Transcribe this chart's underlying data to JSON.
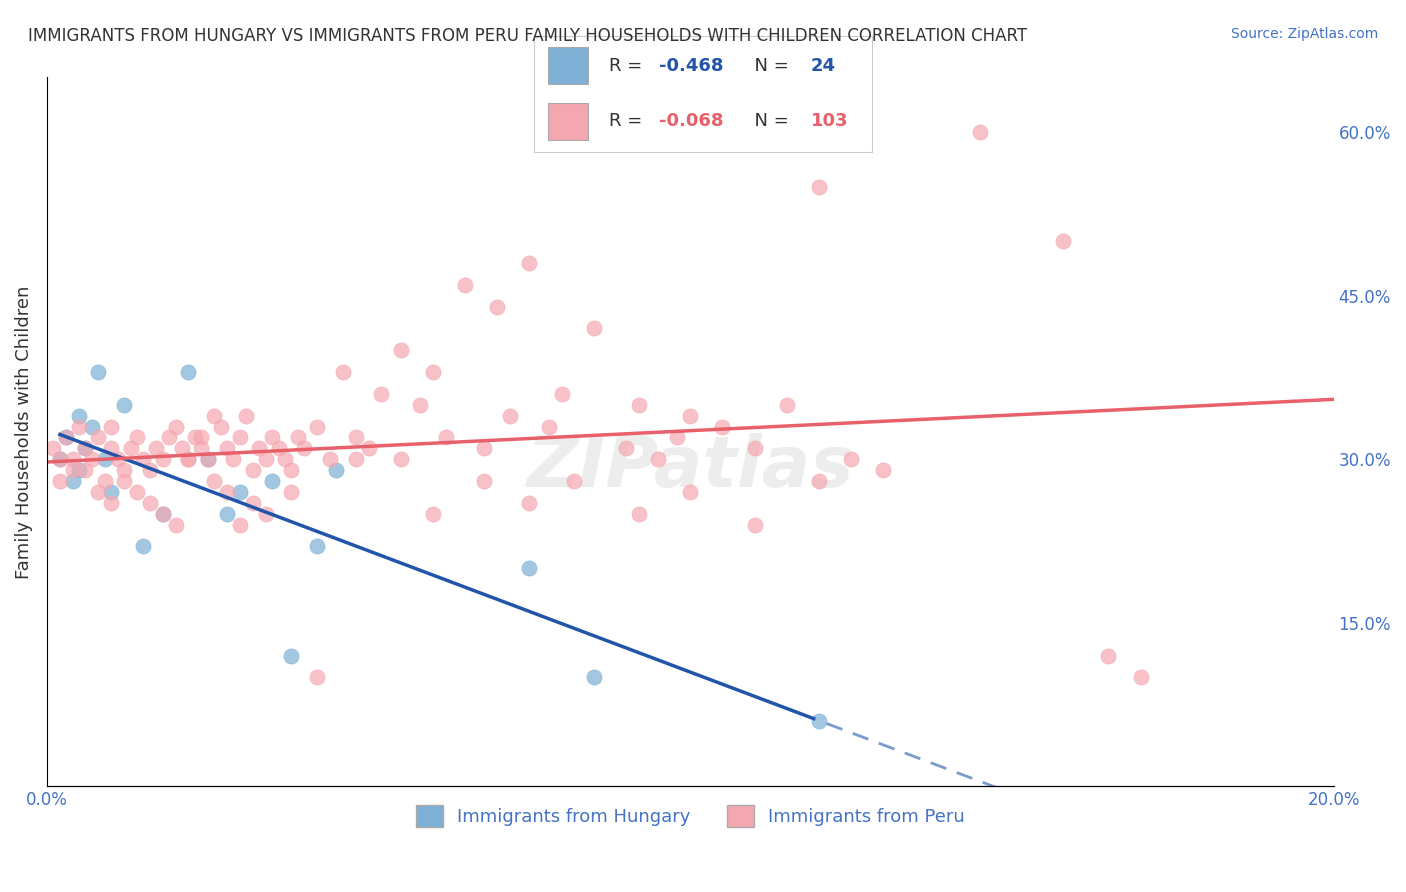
{
  "title": "IMMIGRANTS FROM HUNGARY VS IMMIGRANTS FROM PERU FAMILY HOUSEHOLDS WITH CHILDREN CORRELATION CHART",
  "source": "Source: ZipAtlas.com",
  "xlabel_bottom": "",
  "ylabel": "Family Households with Children",
  "xlim": [
    0.0,
    0.2
  ],
  "ylim": [
    0.0,
    0.65
  ],
  "x_ticks": [
    0.0,
    0.05,
    0.1,
    0.15,
    0.2
  ],
  "x_tick_labels": [
    "0.0%",
    "",
    "",
    "",
    "20.0%"
  ],
  "y_ticks_right": [
    0.15,
    0.3,
    0.45,
    0.6
  ],
  "y_tick_labels_right": [
    "15.0%",
    "30.0%",
    "45.0%",
    "60.0%"
  ],
  "legend_hungary": "R = -0.468  N =  24",
  "legend_peru": "R = -0.068  N = 103",
  "legend_label_hungary": "Immigrants from Hungary",
  "legend_label_peru": "Immigrants from Peru",
  "color_hungary": "#7EB0D5",
  "color_peru": "#F4A7B0",
  "color_hungary_line": "#2255AA",
  "color_peru_line": "#E8606A",
  "watermark": "ZIPatlas",
  "watermark_color": "#CCCCCC",
  "grid_color": "#CCCCCC",
  "background_color": "#FFFFFF",
  "hungary_x": [
    0.002,
    0.003,
    0.004,
    0.005,
    0.005,
    0.006,
    0.007,
    0.008,
    0.009,
    0.01,
    0.012,
    0.015,
    0.018,
    0.022,
    0.025,
    0.028,
    0.03,
    0.035,
    0.038,
    0.042,
    0.045,
    0.075,
    0.085,
    0.12
  ],
  "hungary_y": [
    0.3,
    0.32,
    0.28,
    0.34,
    0.29,
    0.31,
    0.33,
    0.38,
    0.3,
    0.27,
    0.35,
    0.22,
    0.25,
    0.38,
    0.3,
    0.25,
    0.27,
    0.28,
    0.12,
    0.22,
    0.29,
    0.2,
    0.1,
    0.06
  ],
  "peru_x": [
    0.001,
    0.002,
    0.003,
    0.004,
    0.005,
    0.006,
    0.007,
    0.008,
    0.009,
    0.01,
    0.01,
    0.011,
    0.012,
    0.013,
    0.014,
    0.015,
    0.016,
    0.017,
    0.018,
    0.019,
    0.02,
    0.021,
    0.022,
    0.023,
    0.024,
    0.025,
    0.026,
    0.027,
    0.028,
    0.029,
    0.03,
    0.031,
    0.032,
    0.033,
    0.034,
    0.035,
    0.036,
    0.037,
    0.038,
    0.039,
    0.04,
    0.042,
    0.044,
    0.046,
    0.048,
    0.05,
    0.052,
    0.055,
    0.058,
    0.06,
    0.062,
    0.065,
    0.068,
    0.07,
    0.072,
    0.075,
    0.078,
    0.08,
    0.085,
    0.09,
    0.092,
    0.095,
    0.098,
    0.1,
    0.105,
    0.11,
    0.115,
    0.12,
    0.125,
    0.13,
    0.002,
    0.004,
    0.006,
    0.008,
    0.01,
    0.012,
    0.014,
    0.016,
    0.018,
    0.02,
    0.022,
    0.024,
    0.026,
    0.028,
    0.03,
    0.032,
    0.034,
    0.038,
    0.042,
    0.048,
    0.055,
    0.06,
    0.068,
    0.075,
    0.082,
    0.092,
    0.1,
    0.11,
    0.12,
    0.145,
    0.158,
    0.165,
    0.17
  ],
  "peru_y": [
    0.31,
    0.3,
    0.32,
    0.29,
    0.33,
    0.31,
    0.3,
    0.32,
    0.28,
    0.31,
    0.33,
    0.3,
    0.29,
    0.31,
    0.32,
    0.3,
    0.29,
    0.31,
    0.3,
    0.32,
    0.33,
    0.31,
    0.3,
    0.32,
    0.31,
    0.3,
    0.34,
    0.33,
    0.31,
    0.3,
    0.32,
    0.34,
    0.29,
    0.31,
    0.3,
    0.32,
    0.31,
    0.3,
    0.29,
    0.32,
    0.31,
    0.33,
    0.3,
    0.38,
    0.32,
    0.31,
    0.36,
    0.4,
    0.35,
    0.38,
    0.32,
    0.46,
    0.31,
    0.44,
    0.34,
    0.48,
    0.33,
    0.36,
    0.42,
    0.31,
    0.35,
    0.3,
    0.32,
    0.34,
    0.33,
    0.31,
    0.35,
    0.28,
    0.3,
    0.29,
    0.28,
    0.3,
    0.29,
    0.27,
    0.26,
    0.28,
    0.27,
    0.26,
    0.25,
    0.24,
    0.3,
    0.32,
    0.28,
    0.27,
    0.24,
    0.26,
    0.25,
    0.27,
    0.1,
    0.3,
    0.3,
    0.25,
    0.28,
    0.26,
    0.28,
    0.25,
    0.27,
    0.24,
    0.55,
    0.6,
    0.5,
    0.12,
    0.1
  ]
}
